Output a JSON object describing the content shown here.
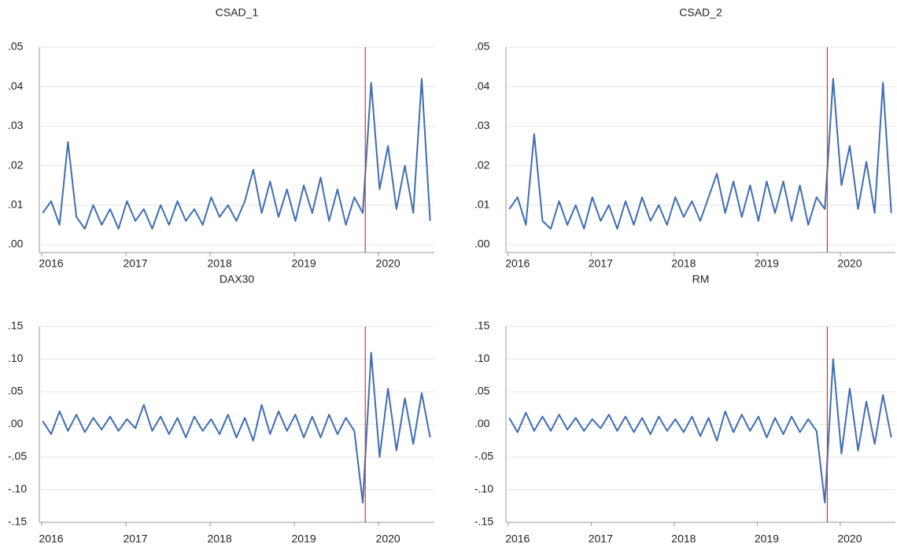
{
  "chart_data": [
    {
      "type": "line",
      "title": "CSAD_1",
      "x": [
        2015.9,
        2016.0,
        2016.1,
        2016.2,
        2016.3,
        2016.4,
        2016.5,
        2016.6,
        2016.7,
        2016.8,
        2016.9,
        2017.0,
        2017.1,
        2017.2,
        2017.3,
        2017.4,
        2017.5,
        2017.6,
        2017.7,
        2017.8,
        2017.9,
        2018.0,
        2018.1,
        2018.2,
        2018.3,
        2018.4,
        2018.5,
        2018.6,
        2018.7,
        2018.8,
        2018.9,
        2019.0,
        2019.1,
        2019.2,
        2019.3,
        2019.4,
        2019.5,
        2019.6,
        2019.7,
        2019.8,
        2019.9,
        2020.0,
        2020.1,
        2020.2,
        2020.3,
        2020.4,
        2020.5
      ],
      "series": [
        {
          "name": "CSAD_1",
          "color": "#3f6db3",
          "values": [
            0.008,
            0.011,
            0.005,
            0.026,
            0.007,
            0.004,
            0.01,
            0.005,
            0.009,
            0.004,
            0.011,
            0.006,
            0.009,
            0.004,
            0.01,
            0.005,
            0.011,
            0.006,
            0.009,
            0.005,
            0.012,
            0.007,
            0.01,
            0.006,
            0.011,
            0.019,
            0.008,
            0.016,
            0.007,
            0.014,
            0.006,
            0.015,
            0.008,
            0.017,
            0.006,
            0.014,
            0.005,
            0.012,
            0.008,
            0.041,
            0.014,
            0.025,
            0.009,
            0.02,
            0.008,
            0.042,
            0.006
          ]
        }
      ],
      "xlim": [
        2015.86,
        2020.55
      ],
      "xticks": [
        2016,
        2017,
        2018,
        2019,
        2020
      ],
      "ylim": [
        -0.002,
        0.05
      ],
      "yticks": [
        {
          "value": 0,
          "label": ".00"
        },
        {
          "value": 0.01,
          "label": ".01"
        },
        {
          "value": 0.02,
          "label": ".02"
        },
        {
          "value": 0.03,
          "label": ".03"
        },
        {
          "value": 0.04,
          "label": ".04"
        },
        {
          "value": 0.05,
          "label": ".05"
        }
      ],
      "vline": 2019.73,
      "vline_color": "#e03030",
      "grid": true
    },
    {
      "type": "line",
      "title": "CSAD_2",
      "x": [
        2015.9,
        2016.0,
        2016.1,
        2016.2,
        2016.3,
        2016.4,
        2016.5,
        2016.6,
        2016.7,
        2016.8,
        2016.9,
        2017.0,
        2017.1,
        2017.2,
        2017.3,
        2017.4,
        2017.5,
        2017.6,
        2017.7,
        2017.8,
        2017.9,
        2018.0,
        2018.1,
        2018.2,
        2018.3,
        2018.4,
        2018.5,
        2018.6,
        2018.7,
        2018.8,
        2018.9,
        2019.0,
        2019.1,
        2019.2,
        2019.3,
        2019.4,
        2019.5,
        2019.6,
        2019.7,
        2019.8,
        2019.9,
        2020.0,
        2020.1,
        2020.2,
        2020.3,
        2020.4,
        2020.5
      ],
      "series": [
        {
          "name": "CSAD_2",
          "color": "#3f6db3",
          "values": [
            0.009,
            0.012,
            0.005,
            0.028,
            0.006,
            0.004,
            0.011,
            0.005,
            0.01,
            0.004,
            0.012,
            0.006,
            0.01,
            0.004,
            0.011,
            0.005,
            0.012,
            0.006,
            0.01,
            0.005,
            0.012,
            0.007,
            0.011,
            0.006,
            0.012,
            0.018,
            0.008,
            0.016,
            0.007,
            0.015,
            0.006,
            0.016,
            0.008,
            0.016,
            0.006,
            0.015,
            0.005,
            0.012,
            0.009,
            0.042,
            0.015,
            0.025,
            0.009,
            0.021,
            0.008,
            0.041,
            0.008
          ]
        }
      ],
      "xlim": [
        2015.86,
        2020.55
      ],
      "xticks": [
        2016,
        2017,
        2018,
        2019,
        2020
      ],
      "ylim": [
        -0.002,
        0.05
      ],
      "yticks": [
        {
          "value": 0,
          "label": ".00"
        },
        {
          "value": 0.01,
          "label": ".01"
        },
        {
          "value": 0.02,
          "label": ".02"
        },
        {
          "value": 0.03,
          "label": ".03"
        },
        {
          "value": 0.04,
          "label": ".04"
        },
        {
          "value": 0.05,
          "label": ".05"
        }
      ],
      "vline": 2019.73,
      "vline_color": "#e03030",
      "grid": true
    },
    {
      "type": "line",
      "title": "DAX30",
      "x": [
        2015.9,
        2016.0,
        2016.1,
        2016.2,
        2016.3,
        2016.4,
        2016.5,
        2016.6,
        2016.7,
        2016.8,
        2016.9,
        2017.0,
        2017.1,
        2017.2,
        2017.3,
        2017.4,
        2017.5,
        2017.6,
        2017.7,
        2017.8,
        2017.9,
        2018.0,
        2018.1,
        2018.2,
        2018.3,
        2018.4,
        2018.5,
        2018.6,
        2018.7,
        2018.8,
        2018.9,
        2019.0,
        2019.1,
        2019.2,
        2019.3,
        2019.4,
        2019.5,
        2019.6,
        2019.7,
        2019.8,
        2019.9,
        2020.0,
        2020.1,
        2020.2,
        2020.3,
        2020.4,
        2020.5
      ],
      "series": [
        {
          "name": "DAX30",
          "color": "#3f6db3",
          "values": [
            0.005,
            -0.015,
            0.02,
            -0.01,
            0.015,
            -0.012,
            0.01,
            -0.008,
            0.012,
            -0.01,
            0.008,
            -0.006,
            0.03,
            -0.01,
            0.012,
            -0.015,
            0.01,
            -0.02,
            0.012,
            -0.01,
            0.008,
            -0.015,
            0.015,
            -0.02,
            0.01,
            -0.025,
            0.03,
            -0.015,
            0.02,
            -0.01,
            0.015,
            -0.02,
            0.012,
            -0.02,
            0.015,
            -0.015,
            0.01,
            -0.01,
            -0.12,
            0.11,
            -0.05,
            0.055,
            -0.04,
            0.04,
            -0.03,
            0.048,
            -0.02
          ]
        }
      ],
      "xlim": [
        2015.86,
        2020.55
      ],
      "xticks": [
        2016,
        2017,
        2018,
        2019,
        2020
      ],
      "ylim": [
        -0.15,
        0.15
      ],
      "yticks": [
        {
          "value": -0.15,
          "label": "-.15"
        },
        {
          "value": -0.1,
          "label": "-.10"
        },
        {
          "value": -0.05,
          "label": "-.05"
        },
        {
          "value": 0,
          "label": ".00"
        },
        {
          "value": 0.05,
          "label": ".05"
        },
        {
          "value": 0.1,
          "label": ".10"
        },
        {
          "value": 0.15,
          "label": ".15"
        }
      ],
      "vline": 2019.73,
      "vline_color": "#e03030",
      "grid": true
    },
    {
      "type": "line",
      "title": "RM",
      "x": [
        2015.9,
        2016.0,
        2016.1,
        2016.2,
        2016.3,
        2016.4,
        2016.5,
        2016.6,
        2016.7,
        2016.8,
        2016.9,
        2017.0,
        2017.1,
        2017.2,
        2017.3,
        2017.4,
        2017.5,
        2017.6,
        2017.7,
        2017.8,
        2017.9,
        2018.0,
        2018.1,
        2018.2,
        2018.3,
        2018.4,
        2018.5,
        2018.6,
        2018.7,
        2018.8,
        2018.9,
        2019.0,
        2019.1,
        2019.2,
        2019.3,
        2019.4,
        2019.5,
        2019.6,
        2019.7,
        2019.8,
        2019.9,
        2020.0,
        2020.1,
        2020.2,
        2020.3,
        2020.4,
        2020.5
      ],
      "series": [
        {
          "name": "RM",
          "color": "#3f6db3",
          "values": [
            0.01,
            -0.012,
            0.018,
            -0.01,
            0.012,
            -0.01,
            0.015,
            -0.008,
            0.01,
            -0.01,
            0.008,
            -0.006,
            0.015,
            -0.01,
            0.012,
            -0.012,
            0.01,
            -0.015,
            0.012,
            -0.01,
            0.008,
            -0.012,
            0.012,
            -0.018,
            0.01,
            -0.025,
            0.02,
            -0.012,
            0.015,
            -0.01,
            0.012,
            -0.02,
            0.01,
            -0.015,
            0.012,
            -0.012,
            0.008,
            -0.01,
            -0.12,
            0.1,
            -0.045,
            0.055,
            -0.04,
            0.035,
            -0.03,
            0.045,
            -0.02
          ]
        }
      ],
      "xlim": [
        2015.86,
        2020.55
      ],
      "xticks": [
        2016,
        2017,
        2018,
        2019,
        2020
      ],
      "ylim": [
        -0.15,
        0.15
      ],
      "yticks": [
        {
          "value": -0.15,
          "label": "-.15"
        },
        {
          "value": -0.1,
          "label": "-.10"
        },
        {
          "value": -0.05,
          "label": "-.05"
        },
        {
          "value": 0,
          "label": ".00"
        },
        {
          "value": 0.05,
          "label": ".05"
        },
        {
          "value": 0.1,
          "label": ".10"
        },
        {
          "value": 0.15,
          "label": ".15"
        }
      ],
      "vline": 2019.73,
      "vline_color": "#e03030",
      "grid": true
    }
  ]
}
